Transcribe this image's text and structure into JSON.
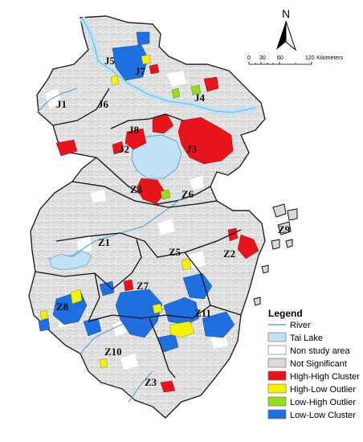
{
  "north_arrow": {
    "label": "N"
  },
  "scale_bar": {
    "ticks": [
      "0",
      "30",
      "60",
      "120"
    ],
    "unit": "Kilometers"
  },
  "zones": [
    {
      "id": "J1",
      "label": "J1"
    },
    {
      "id": "J2",
      "label": "J2"
    },
    {
      "id": "J3",
      "label": "J3"
    },
    {
      "id": "J4",
      "label": "J4"
    },
    {
      "id": "J5",
      "label": "J5"
    },
    {
      "id": "J6",
      "label": "J6"
    },
    {
      "id": "J7",
      "label": "J7"
    },
    {
      "id": "J8",
      "label": "J8"
    },
    {
      "id": "Z1",
      "label": "Z1"
    },
    {
      "id": "Z2",
      "label": "Z2"
    },
    {
      "id": "Z3",
      "label": "Z3"
    },
    {
      "id": "Z4",
      "label": "Z4"
    },
    {
      "id": "Z5",
      "label": "Z5"
    },
    {
      "id": "Z6",
      "label": "Z6"
    },
    {
      "id": "Z7",
      "label": "Z7"
    },
    {
      "id": "Z8",
      "label": "Z8"
    },
    {
      "id": "Z9",
      "label": "Z9"
    },
    {
      "id": "Z10",
      "label": "Z10"
    },
    {
      "id": "Z11",
      "label": "Z11"
    }
  ],
  "legend": {
    "title": "Legend",
    "items": [
      {
        "label": "River",
        "type": "line",
        "color": "#5aa9d6"
      },
      {
        "label": "Tai Lake",
        "type": "box",
        "color": "#bfe3f5"
      },
      {
        "label": "Non study area",
        "type": "box",
        "color": "#ffffff"
      },
      {
        "label": "Not Significant",
        "type": "box",
        "color": "#d9d9d9"
      },
      {
        "label": "High-High Cluster",
        "type": "box",
        "color": "#e8141c"
      },
      {
        "label": "High-Low Outlier",
        "type": "box",
        "color": "#f5f20a"
      },
      {
        "label": "Low-High Outlier",
        "type": "box",
        "color": "#97dc1f"
      },
      {
        "label": "Low-Low Cluster",
        "type": "box",
        "color": "#1f6fe0"
      }
    ]
  }
}
